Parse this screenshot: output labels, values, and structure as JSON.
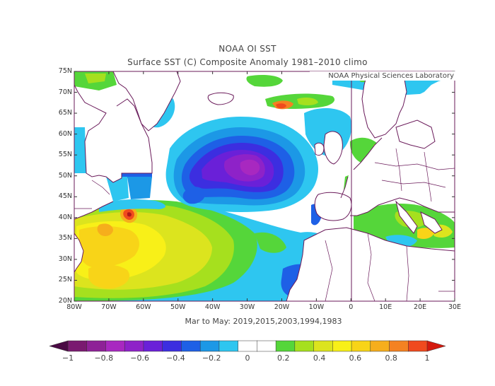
{
  "title": "NOAA OI SST",
  "subtitle": "Surface SST (C) Composite Anomaly 1981–2010 climo",
  "credit": "NOAA Physical Sciences Laboratory",
  "footer": "Mar to May: 2019,2015,2003,1994,1983",
  "lat_labels": [
    "75N",
    "70N",
    "65N",
    "60N",
    "55N",
    "50N",
    "45N",
    "40N",
    "35N",
    "30N",
    "25N",
    "20N"
  ],
  "lon_labels": [
    "80W",
    "70W",
    "60W",
    "50W",
    "40W",
    "30W",
    "20W",
    "10W",
    "0",
    "10E",
    "20E",
    "30E"
  ],
  "colorbar": {
    "ticks": [
      "−1",
      "−0.8",
      "−0.6",
      "−0.4",
      "−0.2",
      "0",
      "0.2",
      "0.4",
      "0.6",
      "0.8",
      "1"
    ],
    "colors": [
      "#7a1a70",
      "#8e2197",
      "#a828c0",
      "#8e22c8",
      "#6a20d8",
      "#3c2ee0",
      "#1e60e6",
      "#1c98e6",
      "#2ec6f0",
      "#ffffff",
      "#ffffff",
      "#55d63a",
      "#a6e01e",
      "#dce41e",
      "#f8f018",
      "#f8d418",
      "#f6ae1c",
      "#f48222",
      "#f04a1e"
    ]
  },
  "legend_colors": {
    "land": "#ffffff",
    "coast": "#6a1a5a"
  }
}
